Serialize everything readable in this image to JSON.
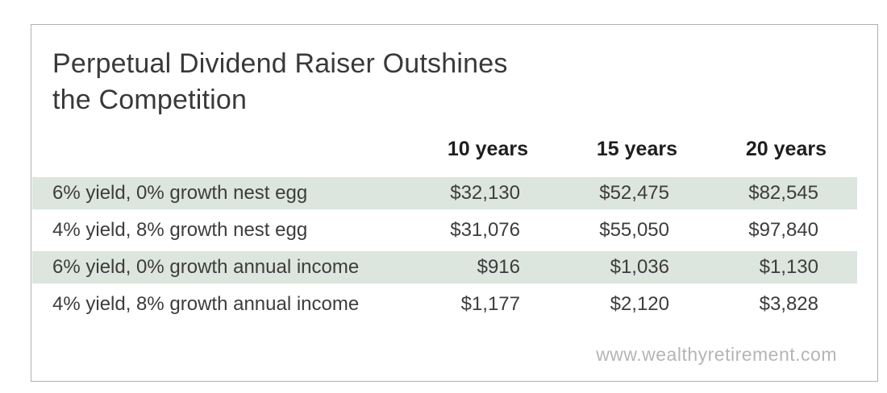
{
  "title": {
    "line1": "Perpetual Dividend Raiser Outshines",
    "line2": "the Competition"
  },
  "table": {
    "columns": [
      "",
      "10 years",
      "15 years",
      "20 years"
    ],
    "rows": [
      {
        "label": "6% yield, 0% growth nest egg",
        "values": [
          "$32,130",
          "$52,475",
          "$82,545"
        ],
        "shaded": true
      },
      {
        "label": "4% yield, 8% growth nest egg",
        "values": [
          "$31,076",
          "$55,050",
          "$97,840"
        ],
        "shaded": false
      },
      {
        "label": "6% yield, 0% growth annual income",
        "values": [
          "$916",
          "$1,036",
          "$1,130"
        ],
        "shaded": true
      },
      {
        "label": "4% yield, 8% growth annual income",
        "values": [
          "$1,177",
          "$2,120",
          "$3,828"
        ],
        "shaded": false
      }
    ],
    "shaded_row_color": "#dde5df"
  },
  "footer": {
    "website": "www.wealthyretirement.com"
  },
  "colors": {
    "card_border": "#b0b0b0",
    "title_text": "#393939",
    "body_text": "#3d3d3d",
    "header_text": "#1e1e1e",
    "watermark_text": "#b5b5b5"
  },
  "chart_data": {
    "type": "table",
    "title": "Perpetual Dividend Raiser Outshines the Competition",
    "categories": [
      "10 years",
      "15 years",
      "20 years"
    ],
    "series": [
      {
        "name": "6% yield, 0% growth nest egg",
        "values": [
          32130,
          52475,
          82545
        ]
      },
      {
        "name": "4% yield, 8% growth nest egg",
        "values": [
          31076,
          55050,
          97840
        ]
      },
      {
        "name": "6% yield, 0% growth annual income",
        "values": [
          916,
          1036,
          1130
        ]
      },
      {
        "name": "4% yield, 8% growth annual income",
        "values": [
          1177,
          2120,
          3828
        ]
      }
    ],
    "annotations": [
      "www.wealthyretirement.com"
    ],
    "layout": {
      "shaded_rows": [
        0,
        2
      ],
      "value_alignment": "right",
      "legend": "none",
      "grid": false
    }
  }
}
